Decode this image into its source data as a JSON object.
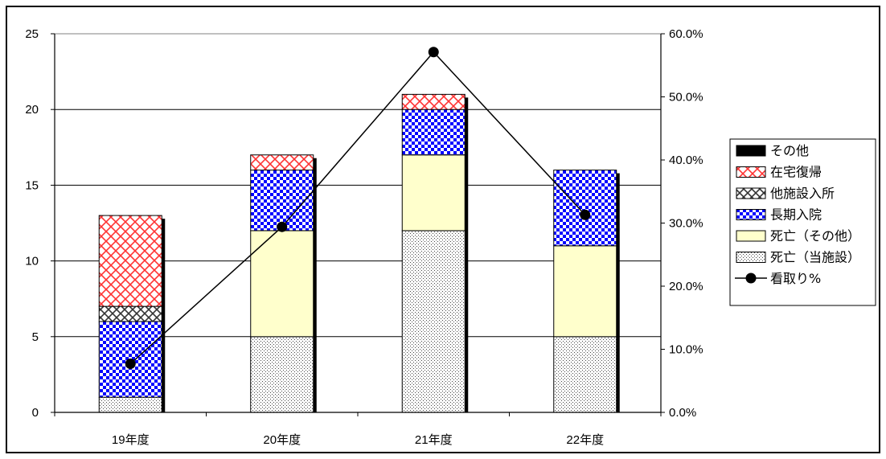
{
  "chart_data": {
    "type": "bar",
    "stacked": true,
    "categories": [
      "19年度",
      "20年度",
      "21年度",
      "22年度"
    ],
    "series": [
      {
        "name": "死亡（当施設）",
        "values": [
          1,
          5,
          12,
          5
        ],
        "pattern": "dots",
        "color": "#ffffff"
      },
      {
        "name": "死亡（その他）",
        "values": [
          0,
          7,
          5,
          6
        ],
        "pattern": "solid",
        "color": "#ffffcc"
      },
      {
        "name": "長期入院",
        "values": [
          5,
          4,
          3,
          5
        ],
        "pattern": "checker",
        "color": "#0000ff"
      },
      {
        "name": "他施設入所",
        "values": [
          1,
          0,
          0,
          0
        ],
        "pattern": "crosshatch",
        "color": "#555555"
      },
      {
        "name": "在宅復帰",
        "values": [
          6,
          1,
          1,
          0
        ],
        "pattern": "crosshatch",
        "color": "#ff3333"
      },
      {
        "name": "その他",
        "values": [
          0,
          0,
          0,
          0
        ],
        "pattern": "solid",
        "color": "#000000"
      }
    ],
    "line_series": {
      "name": "看取り%",
      "values": [
        7.7,
        29.4,
        57.1,
        31.3
      ],
      "axis": "right",
      "color": "#000000"
    },
    "y_left": {
      "min": 0,
      "max": 25,
      "ticks": [
        "0",
        "5",
        "10",
        "15",
        "20",
        "25"
      ]
    },
    "y_right": {
      "min": 0,
      "max": 60,
      "ticks": [
        "0.0%",
        "10.0%",
        "20.0%",
        "30.0%",
        "40.0%",
        "50.0%",
        "60.0%"
      ]
    },
    "legend": {
      "placement": "right",
      "entries": [
        "その他",
        "在宅復帰",
        "他施設入所",
        "長期入院",
        "死亡（その他）",
        "死亡（当施設）",
        "看取り%"
      ]
    },
    "grid": true
  }
}
